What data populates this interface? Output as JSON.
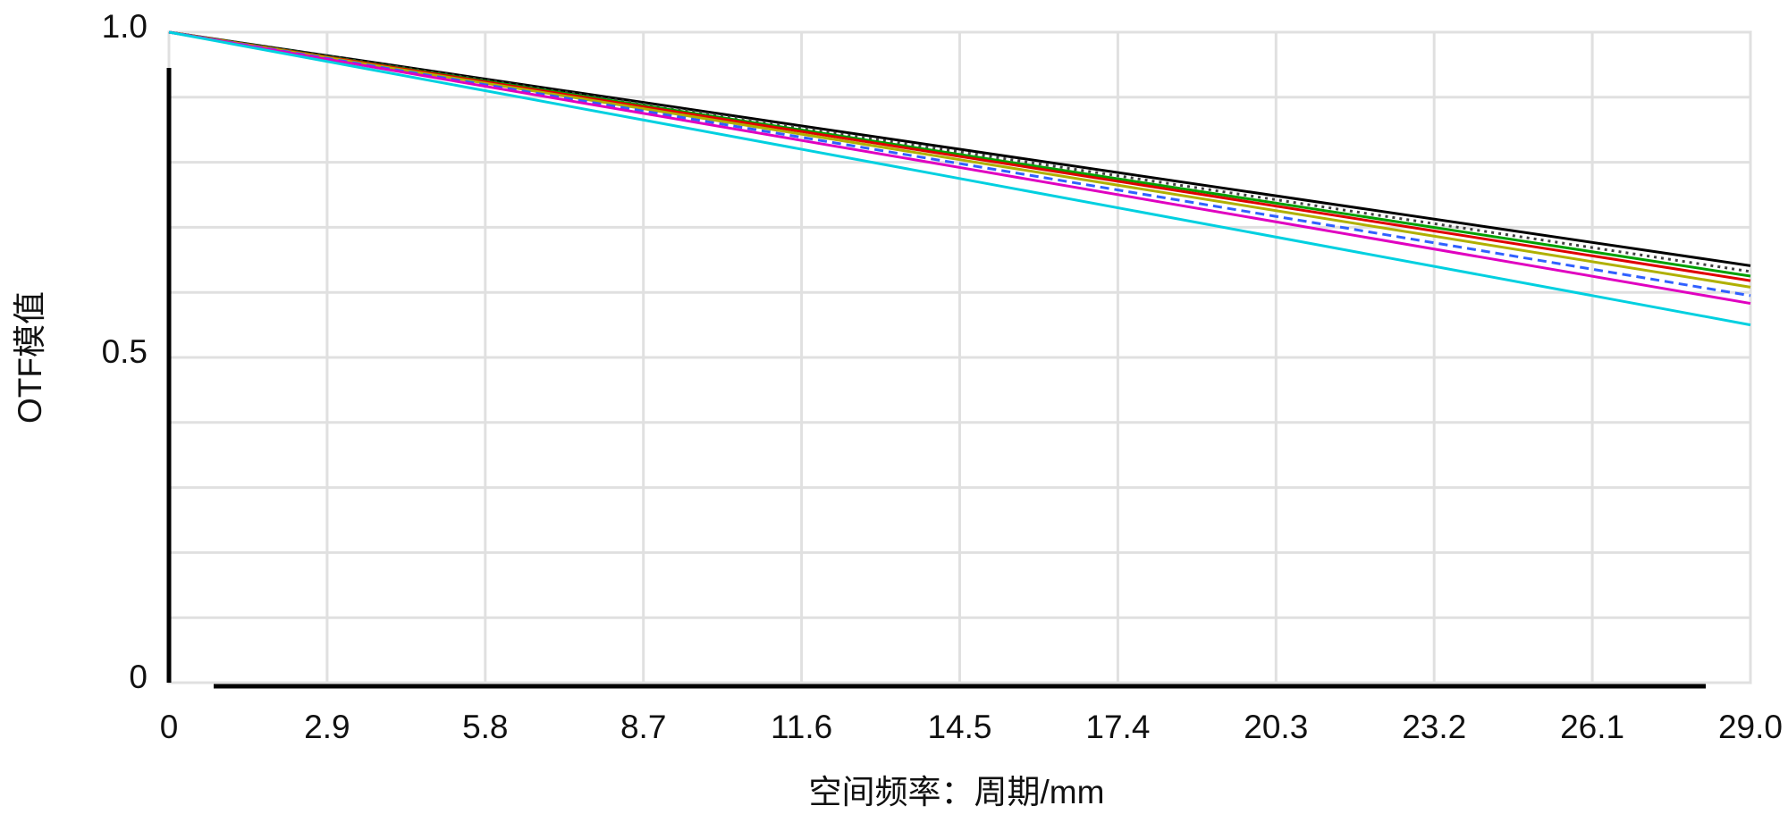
{
  "chart_data": {
    "type": "line",
    "x_label": "空间频率：周期/mm",
    "y_label": "OTF模值",
    "xlim": [
      0,
      29
    ],
    "ylim": [
      0,
      1
    ],
    "xticks": [
      0,
      2.9,
      5.8,
      8.7,
      11.6,
      14.5,
      17.4,
      20.3,
      23.2,
      26.1,
      {
        "value": 29,
        "label": "29.0"
      }
    ],
    "yticks": [
      0,
      0.5,
      {
        "value": 1,
        "label": "1.0"
      }
    ],
    "y_grid": [
      0.1,
      0.2,
      0.3,
      0.4,
      0.6,
      0.7,
      0.8,
      0.9
    ],
    "grid": true,
    "series": [
      {
        "color": "#000000",
        "dash": "solid",
        "x": [
          0,
          14.5,
          29
        ],
        "values": [
          1,
          0.82,
          0.641
        ]
      },
      {
        "color": "#404040",
        "dash": "dotted",
        "x": [
          0,
          14.5,
          29
        ],
        "values": [
          1,
          0.816,
          0.632
        ]
      },
      {
        "color": "#00a000",
        "dash": "solid",
        "x": [
          0,
          14.5,
          29
        ],
        "values": [
          1,
          0.812,
          0.625
        ]
      },
      {
        "color": "#e00000",
        "dash": "solid",
        "x": [
          0,
          14.5,
          29
        ],
        "values": [
          1,
          0.809,
          0.618
        ]
      },
      {
        "color": "#b0b000",
        "dash": "solid",
        "x": [
          0,
          14.5,
          29
        ],
        "values": [
          1,
          0.804,
          0.608
        ]
      },
      {
        "color": "#3060ff",
        "dash": "dashed",
        "x": [
          0,
          14.5,
          29
        ],
        "values": [
          1,
          0.798,
          0.595
        ]
      },
      {
        "color": "#e000c0",
        "dash": "solid",
        "x": [
          0,
          14.5,
          29
        ],
        "values": [
          1,
          0.792,
          0.583
        ]
      },
      {
        "color": "#00d0e0",
        "dash": "solid",
        "x": [
          0,
          14.5,
          29
        ],
        "values": [
          1,
          0.775,
          0.55
        ]
      }
    ]
  }
}
